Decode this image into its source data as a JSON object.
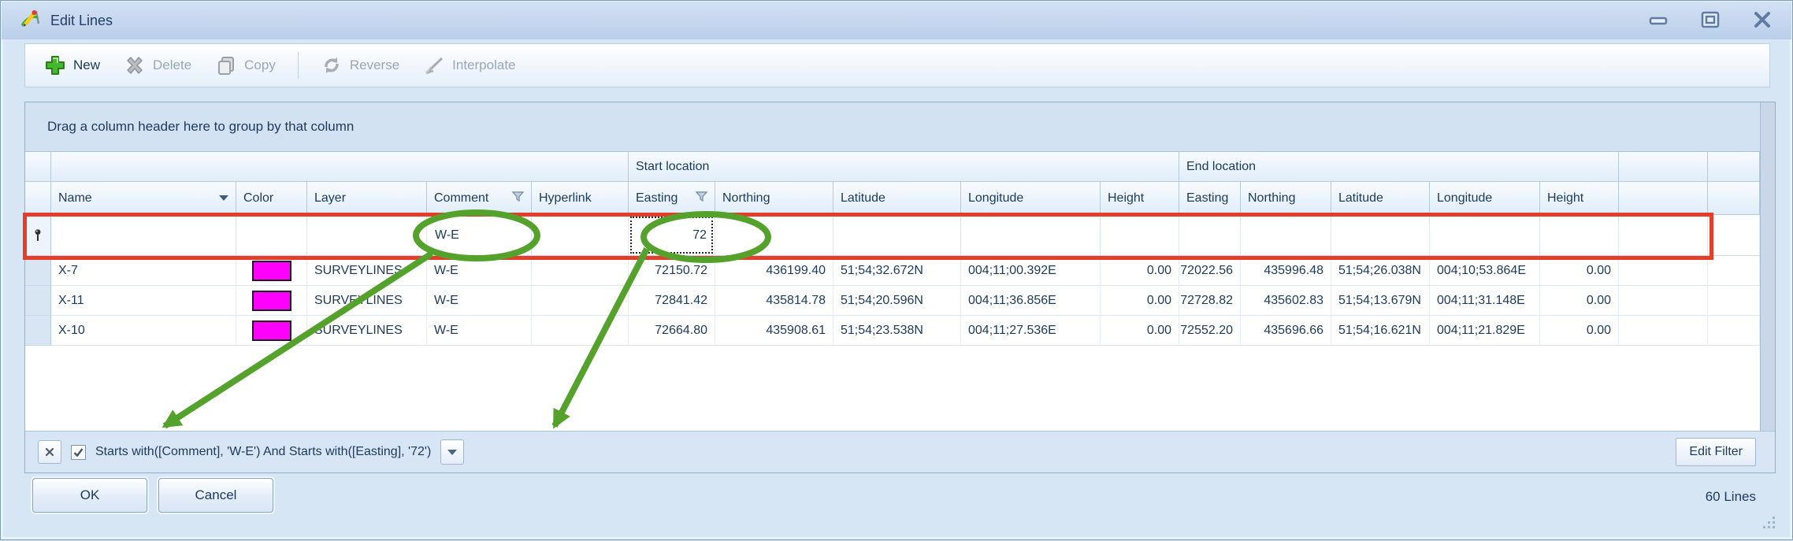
{
  "window": {
    "title": "Edit Lines",
    "controls": {
      "minimize": "minimize",
      "restore": "restore",
      "close": "close"
    }
  },
  "toolbar": {
    "items": [
      {
        "label": "New",
        "icon": "new-plus-icon",
        "enabled": true
      },
      {
        "label": "Delete",
        "icon": "delete-x-icon",
        "enabled": false
      },
      {
        "label": "Copy",
        "icon": "copy-pages-icon",
        "enabled": false
      },
      {
        "type": "separator"
      },
      {
        "label": "Reverse",
        "icon": "reverse-arrows-icon",
        "enabled": false
      },
      {
        "label": "Interpolate",
        "icon": "interpolate-line-icon",
        "enabled": false
      }
    ]
  },
  "grid": {
    "group_panel_text": "Drag a column header here to group by that column",
    "bands": {
      "start": "Start location",
      "end": "End location"
    },
    "columns": [
      {
        "key": "name",
        "label": "Name",
        "sort": true
      },
      {
        "key": "color",
        "label": "Color"
      },
      {
        "key": "layer",
        "label": "Layer"
      },
      {
        "key": "comment",
        "label": "Comment",
        "filtered": true
      },
      {
        "key": "hyperlink",
        "label": "Hyperlink"
      },
      {
        "key": "s_easting",
        "label": "Easting",
        "filtered": true
      },
      {
        "key": "s_northing",
        "label": "Northing"
      },
      {
        "key": "s_latitude",
        "label": "Latitude"
      },
      {
        "key": "s_longitude",
        "label": "Longitude"
      },
      {
        "key": "s_height",
        "label": "Height"
      },
      {
        "key": "e_easting",
        "label": "Easting"
      },
      {
        "key": "e_northing",
        "label": "Northing"
      },
      {
        "key": "e_latitude",
        "label": "Latitude"
      },
      {
        "key": "e_longitude",
        "label": "Longitude"
      },
      {
        "key": "e_height",
        "label": "Height"
      }
    ],
    "filter_row": {
      "comment": "W-E",
      "s_easting": "72"
    },
    "rows": [
      {
        "name": "X-7",
        "color": "#ff00ff",
        "layer": "SURVEYLINES",
        "comment": "W-E",
        "hyperlink": "",
        "start": {
          "easting": "72150.72",
          "northing": "436199.40",
          "latitude": "51;54;32.672N",
          "longitude": "004;11;00.392E",
          "height": "0.00"
        },
        "end": {
          "easting": "72022.56",
          "northing": "435996.48",
          "latitude": "51;54;26.038N",
          "longitude": "004;10;53.864E",
          "height": "0.00"
        }
      },
      {
        "name": "X-11",
        "color": "#ff00ff",
        "layer": "SURVEYLINES",
        "comment": "W-E",
        "hyperlink": "",
        "start": {
          "easting": "72841.42",
          "northing": "435814.78",
          "latitude": "51;54;20.596N",
          "longitude": "004;11;36.856E",
          "height": "0.00"
        },
        "end": {
          "easting": "72728.82",
          "northing": "435602.83",
          "latitude": "51;54;13.679N",
          "longitude": "004;11;31.148E",
          "height": "0.00"
        }
      },
      {
        "name": "X-10",
        "color": "#ff00ff",
        "layer": "SURVEYLINES",
        "comment": "W-E",
        "hyperlink": "",
        "start": {
          "easting": "72664.80",
          "northing": "435908.61",
          "latitude": "51;54;23.538N",
          "longitude": "004;11;27.536E",
          "height": "0.00"
        },
        "end": {
          "easting": "72552.20",
          "northing": "435696.66",
          "latitude": "51;54;16.621N",
          "longitude": "004;11;21.829E",
          "height": "0.00"
        }
      }
    ],
    "filter_panel": {
      "checkbox_checked": true,
      "text": "Starts with([Comment], 'W-E') And Starts with([Easting], '72')",
      "edit_filter_label": "Edit Filter"
    }
  },
  "footer": {
    "ok_label": "OK",
    "cancel_label": "Cancel",
    "status": "60 Lines"
  },
  "annotations": {
    "highlight_color": "#e63d2a",
    "circle_color": "#54a22c"
  }
}
